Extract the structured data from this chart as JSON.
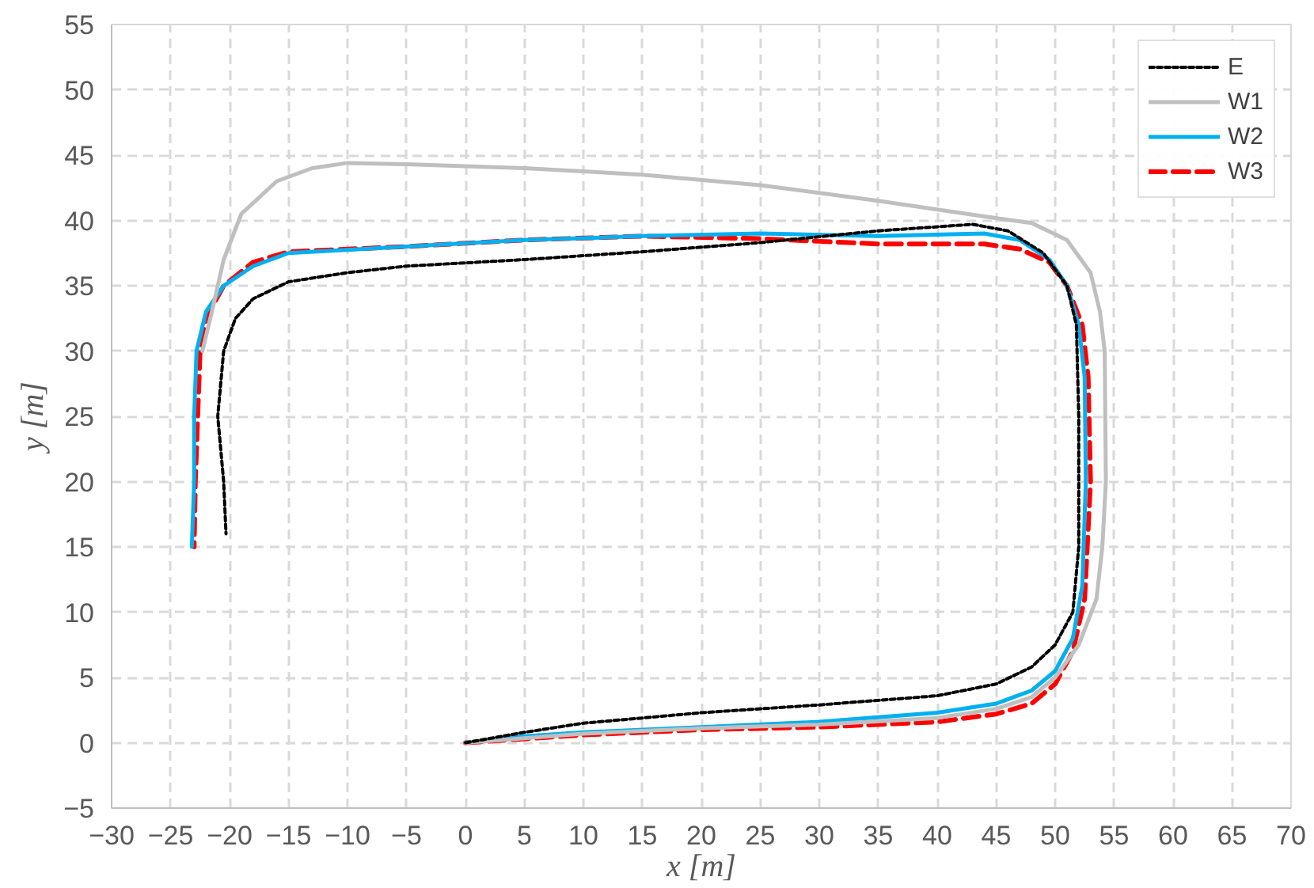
{
  "chart_data": {
    "type": "line",
    "xlabel": "x [m]",
    "ylabel": "y [m]",
    "xlim": [
      -30,
      70
    ],
    "ylim": [
      -5,
      55
    ],
    "xticks": [
      -30,
      -25,
      -20,
      -15,
      -10,
      -5,
      0,
      5,
      10,
      15,
      20,
      25,
      30,
      35,
      40,
      45,
      50,
      55,
      60,
      65,
      70
    ],
    "yticks": [
      -5,
      0,
      5,
      10,
      15,
      20,
      25,
      30,
      35,
      40,
      45,
      50,
      55
    ],
    "grid": true,
    "legend": "top right",
    "marker": "none",
    "series": [
      {
        "name": "E",
        "color": "#000000",
        "line_style": "dotted",
        "x": [
          0,
          5,
          10,
          20,
          30,
          40,
          45,
          48,
          50,
          51.5,
          52,
          52,
          51.8,
          51,
          49,
          46,
          43,
          35,
          25,
          15,
          5,
          -5,
          -10,
          -15,
          -18,
          -19.5,
          -20.5,
          -21,
          -20.5,
          -20.3
        ],
        "values": [
          0,
          0.8,
          1.5,
          2.3,
          2.9,
          3.6,
          4.5,
          5.8,
          7.5,
          10,
          15,
          25,
          32,
          35,
          37.5,
          39.2,
          39.7,
          39.2,
          38.3,
          37.6,
          37,
          36.5,
          36,
          35.3,
          34,
          32.5,
          30,
          25,
          20,
          16
        ]
      },
      {
        "name": "W1",
        "color": "#bfbfbf",
        "line_style": "solid",
        "x": [
          0,
          10,
          20,
          30,
          40,
          45,
          48,
          50,
          52,
          53.5,
          54,
          54.3,
          54.2,
          53.8,
          53,
          51,
          48,
          44,
          35,
          25,
          15,
          5,
          -5,
          -10,
          -13,
          -16,
          -19,
          -20.5,
          -21.5,
          -22.3
        ],
        "values": [
          0,
          0.7,
          1.1,
          1.4,
          1.9,
          2.6,
          3.5,
          5,
          7.5,
          11,
          15,
          20,
          30,
          33,
          36,
          38.5,
          39.8,
          40.3,
          41.5,
          42.7,
          43.5,
          44,
          44.3,
          44.4,
          44,
          43,
          40.5,
          37,
          33,
          30
        ]
      },
      {
        "name": "W2",
        "color": "#00b0f0",
        "line_style": "solid",
        "x": [
          0,
          5,
          10,
          20,
          30,
          40,
          45,
          48,
          50,
          51.5,
          52.3,
          52.6,
          52.5,
          52,
          51,
          49.5,
          47,
          44,
          35,
          25,
          15,
          5,
          -5,
          -15,
          -18,
          -20.5,
          -22,
          -22.8,
          -23,
          -23,
          -23.2
        ],
        "values": [
          0,
          0.5,
          0.8,
          1.2,
          1.6,
          2.3,
          3,
          4,
          5.5,
          8,
          12,
          20,
          28,
          32,
          35,
          37,
          38.5,
          39,
          38.8,
          39,
          38.8,
          38.5,
          38,
          37.5,
          36.5,
          35,
          33,
          30,
          25,
          20,
          15
        ]
      },
      {
        "name": "W3",
        "color": "#ff0000",
        "line_style": "dashed",
        "x": [
          0,
          10,
          20,
          30,
          40,
          45,
          48,
          50,
          51.5,
          52.5,
          53,
          52.8,
          52.3,
          51,
          49.5,
          47,
          44,
          35,
          25,
          15,
          5,
          -5,
          -15,
          -18,
          -20.5,
          -22,
          -22.5,
          -22.7,
          -22.9,
          -23
        ],
        "values": [
          0,
          0.6,
          1,
          1.2,
          1.6,
          2.2,
          3,
          4.5,
          7,
          11,
          20,
          28,
          32,
          35,
          36.8,
          37.8,
          38.2,
          38.2,
          38.6,
          38.8,
          38.5,
          38,
          37.6,
          36.8,
          35,
          32.5,
          30,
          25,
          20,
          15
        ]
      }
    ]
  }
}
